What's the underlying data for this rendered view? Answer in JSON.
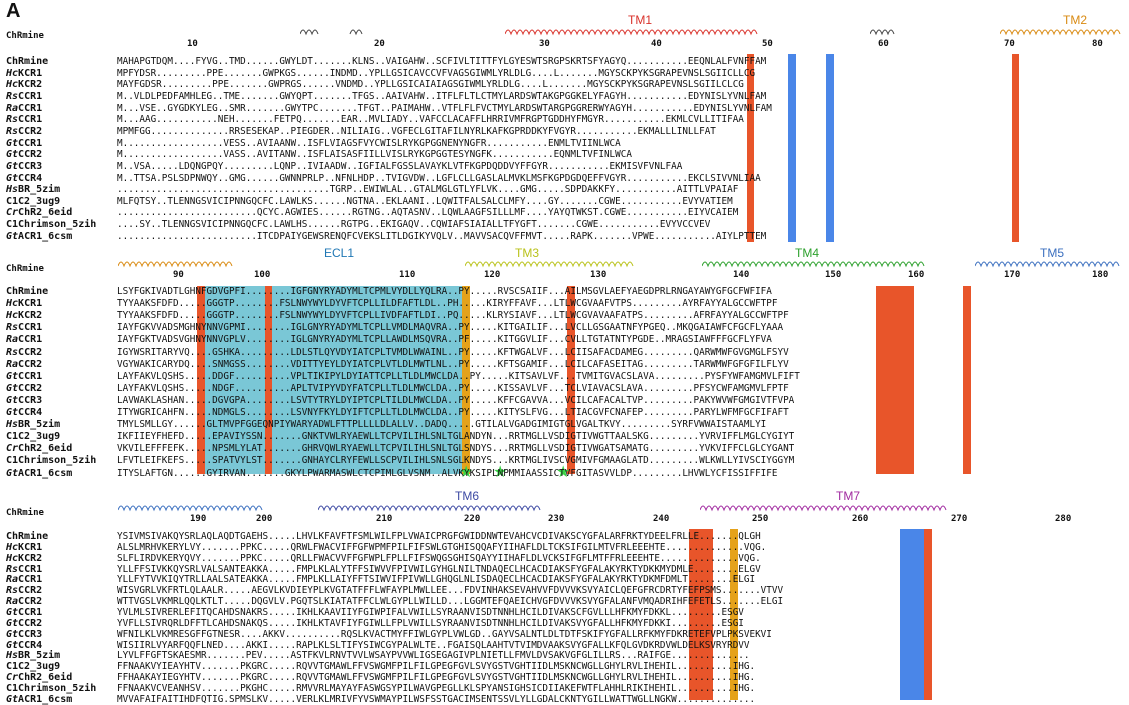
{
  "panel_label": "A",
  "ruler_row_label": "ChRmine",
  "colors": {
    "tm1": "#d9322b",
    "tm2": "#d98a12",
    "ecl1": "#1f77b4",
    "tm3": "#b9c21a",
    "tm4": "#2ca02c",
    "tm5": "#3b6fbf",
    "tm6": "#3d4aa3",
    "tm7": "#a12aa0",
    "orange_col": "#e8552a",
    "yellow_col": "#e5a21a",
    "blue_col": "#4a86e8",
    "ecl_fill": "#7ac7d6"
  },
  "blocks": [
    {
      "id": "block1",
      "tm_labels": [
        {
          "text": "TM1",
          "color": "#d9322b"
        },
        {
          "text": "TM2",
          "color": "#d98a12"
        }
      ],
      "ticks": [
        "10",
        "20",
        "30",
        "40",
        "50",
        "60",
        "70",
        "80"
      ],
      "rows": [
        {
          "name": "ChRmine",
          "italic": "",
          "seq": "MAHAPGTDQM....FYVG..TMD......GWYLDT.......KLNS..VAIGAHW..SCFIVLTITTFYLGYESWTSRGPSKRTSFYAGYQ...........EEQNLALFVNFFAM"
        },
        {
          "name": "KCR1",
          "italic": "Hc",
          "seq": "MPFYDSR.........PPE.......GWPKGS......INDMD..YPLLGSICAVCCVFVAGSGIWMLYRLDLG....L.......MGYSCKPYKSGRAPEVNSLSGIICLLCG"
        },
        {
          "name": "KCR2",
          "italic": "Hc",
          "seq": "MAYFGDSR.........PPE.......GWPRGS......VNDMD..YPLLGSICAIAIAGSGIWMLYRLDLG....L.......MGYSCKPYKSGRAPEVNSLSGIILCLCG"
        },
        {
          "name": "CCR1",
          "italic": "Rs",
          "seq": "M..VLDLPEDFAMHLEG..TME.......GWYQPT.......TFGS..AAIVAHW..ITFLFLTLCTMYLARDSWTAKGPGGKELYFAGYH...........EDYNISLYVNLFAM"
        },
        {
          "name": "CCR1",
          "italic": "Ra",
          "seq": "M...VSE..GYGDKYLEG..SMR.......GWYTPC.......TFGT..PAIMAHW..VTFLFLFVCTMYLARDSWTARGPGGRERWYAGYH...........EDYNISLYVNLFAM"
        },
        {
          "name": "CCR1",
          "italic": "Rs",
          "seq": "M...AAG...........NEH.......FETPQ.......EAR..MVLIADY..VAFCCLACAFFLHRRIVMFRGPTGDDHYFMGYR...........EKMLCVLLITIFAA"
        },
        {
          "name": "CCR2",
          "italic": "Rs",
          "seq": "MPMFGG..............RRSESEKAP..PIEGDER..NILIAIG..VGFECLGITAFILNYRLKAFKGPRDDKYFVGYR...........EKMALLLINLLFAT"
        },
        {
          "name": "CCR1",
          "italic": "Gt",
          "seq": "M..................VESS..AVIAANW..ISFLVIAGSFVYCWISLRYKGPGGNENYNGFR...........ENMLTVIINLWCA"
        },
        {
          "name": "CCR2",
          "italic": "Gt",
          "seq": "M..................VASS..AVITANW..ISFLAISASFIILLVISLRYKGPGGTESYNGFK...........EQNMLTVFINLWCA"
        },
        {
          "name": "CCR3",
          "italic": "Gt",
          "seq": "M..VSA.....LDQNGPQY.........LQNP..IVIAADW..IGFIALFGSSLAVAYKLVTFKGPDQDDVYFFGYR...........EKMISVFVNLFAA"
        },
        {
          "name": "CCR4",
          "italic": "Gt",
          "seq": "M..TTSA.PSLSDPNWQY..GMG......GWNNPRLP..NFNLHDP..TVIGVDW..LGFLCLLGASLALMVKLMSFKGPDGDQEFFVGYR...........EKCLSIVVNLIAA"
        },
        {
          "name": "BR_5zim",
          "italic": "Hs",
          "seq": "......................................TGRP..EWIWLAL..GTALMGLGTLYFLVK....GMG.....SDPDAKKFY...........AITTLVPAIAF"
        },
        {
          "name": "C1C2_3ug9",
          "italic": "",
          "seq": "MLFQTSY..TLENNGSVICIPNNGQCFC.LAWLKS......NGTNA..EKLAANI..LQWITFALSALCLMFY....GY.......CGWE...........EVYVATIEM"
        },
        {
          "name": "ChR2_6eid",
          "italic": "Cr",
          "seq": ".........................QCYC.AGWIES......RGTNG..AQTASNV..LQWLAAGFSILLLMF....YAYQTWKST.CGWE...........EIYVCAIEM"
        },
        {
          "name": "C1Chrimson_5zih",
          "italic": "",
          "seq": "....SY..TLENNGSVICIPNNGQCFC.LAWLHS......RGTPG..EKIGAQV..CQWIAFSIAIALLTFYGFT.......CGWE...........EVYVCCVEV"
        },
        {
          "name": "ACR1_6csm",
          "italic": "Gt",
          "seq": ".........................ITCDPAIYGEWSRENQFCVEKSLITLDGIKYVQLV..MAVVSACQVFFMVT.....RAPK.......VPWE...........AIYLPTTEM"
        }
      ]
    },
    {
      "id": "block2",
      "tm_labels": [
        {
          "text": "ECL1",
          "color": "#1f77b4"
        },
        {
          "text": "TM3",
          "color": "#b9c21a"
        },
        {
          "text": "TM4",
          "color": "#2ca02c"
        },
        {
          "text": "TM5",
          "color": "#3b6fbf"
        }
      ],
      "ticks": [
        "90",
        "100",
        "110",
        "120",
        "130",
        "140",
        "150",
        "160",
        "170",
        "180"
      ],
      "rows": [
        {
          "name": "ChRmine",
          "italic": "",
          "seq": "LSYFGKIVADTLGHNFGDVGPFI........IGFGNYRYADYMLTCPMLVYDLLYQLRA..PY.....RVSCSAIIF...AILMSGVLAEFYAEGDPRLRNGAYAWYGFGCFWFIFA"
        },
        {
          "name": "KCR1",
          "italic": "Hc",
          "seq": "TYYAAKSFDFD.....GGGTP........FSLNWYWYLDYVFTCPLLILDFAFTLDL..PH.....KIRYFFAVF...LTLWCGVAAFVTPS.........AYRFAYYALGCCWFTPF"
        },
        {
          "name": "KCR2",
          "italic": "Hc",
          "seq": "TYYAAKSFDFD.....GGGTP........FSLNWYWYLDYVFTCPLLIVDFAFTLDI..PQ.....KLRYSIAVF...LTLWCGVAVAAFATPS.........AFRFAYYALGCCWFTPF"
        },
        {
          "name": "CCR1",
          "italic": "Rs",
          "seq": "IAYFGKVVADSMGHNYNNVGPMI........IGLGNYRYADYMLTCPLLVMDLMAQVRA..PY.....KITGAILIF...LVCLLGSGAATNFYPGEQ..MKQGAIAWFCFGCFLYAAA"
        },
        {
          "name": "CCR1",
          "italic": "Ra",
          "seq": "IAYFGKTVADSVGHNYNNVGPLV........IGLGNYRYADYMLTCPLLAWDLMSQVRA..PF.....KITGGVLIF...CVLLTGTATNTYPGDE..MRAGSIAWFFFGCFLYFVA"
        },
        {
          "name": "CCR2",
          "italic": "Rs",
          "seq": "IGYWSRITARYVQ....GSHKA.........LDLSTLQYVDYIATCPLTVMDLWWAINL..PY.....KFTWGALVF...LCIISAFACDAMEG.........QARWMWFGVGMGLFSYV"
        },
        {
          "name": "CCR2",
          "italic": "Ra",
          "seq": "VGYWAKICARYDQ....SNMGSS........VDITTYEYLDYIATCPLVTLDLMWTLNL..PY.....KFTSGAMIF...LCILCAFASEITAG.........TARWMWFGFGFILFLYV"
        },
        {
          "name": "CCR1",
          "italic": "Gt",
          "seq": "LAYFAKVLQSHS.....DDGF..........VPLTIKIPYLDYIATTCPLLTLDLMWCLDA..PY.....KITSAVLVF...TVMITGVACSLAVA.........PYSFYWFAMGMVLFIFT"
        },
        {
          "name": "CCR2",
          "italic": "Gt",
          "seq": "LAYFAKVLQSHS.....NDGF..........APLTVIPYVDYFATCPLLTLDLMWCLDA..PY.....KISSAVLVF...TCLVIAVACSLAVA.........PFSYCWFAMGMVLFPTF"
        },
        {
          "name": "CCR3",
          "italic": "Gt",
          "seq": "LAVWAKLASHAN.....DGVGPA........LSVTYTRYLDYIPTCPLTILDLMWCLDA..PY.....KFFCGAVVA...VCILCAFACALTVP.........PAKYWVWFGMGIVTFVPA"
        },
        {
          "name": "CCR4",
          "italic": "Gt",
          "seq": "ITYWGRICAHFN.....NDMGLS........LSVNYFKYLDYIFTCPLLTLDLMWCLDA..PY.....KITYSLFVG...LTIACGVFCNAFEP.........PARYLWFMFGCFIFAFT"
        },
        {
          "name": "BR_5zim",
          "italic": "Hs",
          "seq": "TMYLSMLLGY......GLTMVPFGGEQNPIYWARYADWLFTTPLLLLDLALLV..DADQ.....GTILALVGADGIMIGTGLVGALTKVY.........SYRFVWWAISTAAMLYI"
        },
        {
          "name": "C1C2_3ug9",
          "italic": "",
          "seq": "IKFIIEYFHEFD.....EPAVIYSSN.......GNKTVWLRYAEWLLTCPVILIHLSNLTGLANDYN...RRTMGLLVSDIGTIVWGTTAALSKG.........YVRVIFFLMGLCYGIYT"
        },
        {
          "name": "ChR2_6eid",
          "italic": "Cr",
          "seq": "VKVILEFFFEFK.....NPSMLYLAT.......GHRVQWLRYAEWLLTCPVILIHLSNLTGLSNDYS...RRTMGLLVSDIGTIVWGATSAMATG.........YVKVIFFCLGLCYGANT"
        },
        {
          "name": "C1Chrimson_5zih",
          "italic": "",
          "seq": "LFVTLEIFKEFS.....SPATVYLST.......GNHAYCLRYFEWLLSCPVILIHLSNLSGLKNDYS...KRTMGLIVSCVGMIVFGMAAGLATD.........WLKWLLYIVSCIYGGYM"
        },
        {
          "name": "ACR1_6csm",
          "italic": "Gt",
          "seq": "ITYSLAFTGN......GYIRVAN.......GKYLPWARMASWLCTCPIMLGLVSNM..ALVKYKSIPLNPMMIAASSICTVFGITASVVLDP.........LHVWLYCFISSIFFIFE"
        }
      ]
    },
    {
      "id": "block3",
      "tm_labels": [
        {
          "text": "TM6",
          "color": "#3d4aa3"
        },
        {
          "text": "TM7",
          "color": "#a12aa0"
        }
      ],
      "ticks": [
        "190",
        "200",
        "210",
        "220",
        "230",
        "240",
        "250",
        "260",
        "270",
        "280"
      ],
      "rows": [
        {
          "name": "ChRmine",
          "italic": "",
          "seq": "YSIVMSIVAKQYSRLAQLAQDTGAEHS.....LHVLKFAVFTFSMLWILFPLVWAICPRGFGWIDDNWTEVAHCVCDIVAKSCYGFALARFRKTYDEELFRLLE.......QLGH"
        },
        {
          "name": "KCR1",
          "italic": "Hc",
          "seq": "ALSLMRHVKERYLVY.......PPKC.....QRWLFWACVIFFGFWPMFPILFIFSWLGTGHISQQAFYIIHAFLDLTCKSIFGILMTVFRLEEEHTE..............VQG."
        },
        {
          "name": "KCR2",
          "italic": "Hc",
          "seq": "SLFLIRDVKERYQVY.......PPKC.....QRLLFWACVVFFGFWPLFPLLFIFSWQGSGHISQAYYIIHAFLDLVCKSIFGFLMTFFRLEEEHTE..............VQG."
        },
        {
          "name": "CCR1",
          "italic": "Rs",
          "seq": "YLLFFSIVKKQYSRLVALSANTEAKKA.....FMPLKLALYTFFSIWVVFPIVWILGYHGLNILTNDAQECLHCACDIAKSFYGFALAKYRKTYDKKMYDMLE........ELGV"
        },
        {
          "name": "CCR1",
          "italic": "Ra",
          "seq": "YLLFYTVVKIQYTRLLAALSATEAKKA.....FMPLKLLAIYFFTSIWVIFPIVWLLGHQGLNLISDAQECLHCACDIAKSFYGFALAKYRKTYDKMFDMLT........ELGI"
        },
        {
          "name": "CCR2",
          "italic": "Rs",
          "seq": "WISVGRLVKFRTLQLAALR.....AEGVLKVDIEYPLKVGTATFFFLWFAYPLMWLLEE...FDVINHAKSEVAHVVFDVVVKSVYAICLQEFGFRCDRTYFEFPSMS.......VTVV"
        },
        {
          "name": "CCR2",
          "italic": "Ra",
          "seq": "WTTVGSLVKMRLQQLKTLT.....DQGVLV.PGQTSLKIATATFFCLWLGYPLLWILLD...LGGMTEFQAEICHVGFDVVVKSVYGFALANFVMQADRIHFEFETLS.......ELGI"
        },
        {
          "name": "CCR1",
          "italic": "Gt",
          "seq": "YVLMLSIVRERLEFITQCAHDSNAKRS.....IKHLKAAVIIYFGIWPIFALVWILLSYRAANVISDTNNHLHCILDIVAKSCFGVLLLHFKMYFDKKL.........ESGV"
        },
        {
          "name": "CCR2",
          "italic": "Gt",
          "seq": "YVFLLSIVRQRLDFFTLCAHDSNAKQS.....IKHLKTAVFIYFGIWLLFPLVWILLSYRAANVISDTNNHLHCILDIVAKSVYGFALLHFKMYFDKKI.........ESGI"
        },
        {
          "name": "CCR3",
          "italic": "Gt",
          "seq": "WFNILKLVKMRESGFFGTNESR....AKKV..........RQSLKVACTMYFFIWLGYPLVWLGD..GAYVSALNTLDLTDTFSKIFYGFALLRFKMYFDKRETEFVPLPKSVEKVI"
        },
        {
          "name": "CCR4",
          "italic": "Gt",
          "seq": "WISIIRLVYARFQQFLNED....AKKI.....RAPLKLSLTIFYSIWCGYPALWLTE..FGAISQLAAHTVTVIMDVAAKSVYGFALLKFQLGVDKRDVWLDELKSVRYRDVV"
        },
        {
          "name": "BR_5zim",
          "italic": "Hs",
          "seq": "LYVLFFGFTSKAESMR.......PEV.....ASTFKVLRNVTVVLWSAYPVVWLIGSEGAGIVPLNIETLLFMVLDVSAKVGFGLILLRS...RAIFGE.............."
        },
        {
          "name": "C1C2_3ug9",
          "italic": "",
          "seq": "FFNAAKVYIEAYHTV.......PKGRC.....RQVVTGMAWLFFVSWGMFPILFILGPEGFGVLSVYGSTVGHTIIDLMSKNCWGLLGHYLRVLIHEHIL..........IHG."
        },
        {
          "name": "ChR2_6eid",
          "italic": "Cr",
          "seq": "FFHAAKAYIEGYHTV.......PKGRC.....RQVVTGMAWLFFVSWGMFPILFILGPEGFGVLSVYGSTVGHTIIDLMSKNCWGLLGHYLRVLIHEHIL..........IHG."
        },
        {
          "name": "C1Chrimson_5zih",
          "italic": "",
          "seq": "FFNAAKVCVEANHSV.......PKGHC.....RMVVRLMAYAYFASWGSYPILWAVGPEGLLKLSPYANSIGHSICDIIAKEFWTFLAHHLRIKIHEHIL..........IHG."
        },
        {
          "name": "ACR1_6csm",
          "italic": "Gt",
          "seq": "MVVAFAIFAITIHDFQTIG.SPMSLKV.....VERLKLMRIVFYVSWMAYPILWSFSSTGACIMSENTSSVLYLLGDALCKNTYGILLWATTWGLLNGKW.............."
        }
      ]
    }
  ]
}
